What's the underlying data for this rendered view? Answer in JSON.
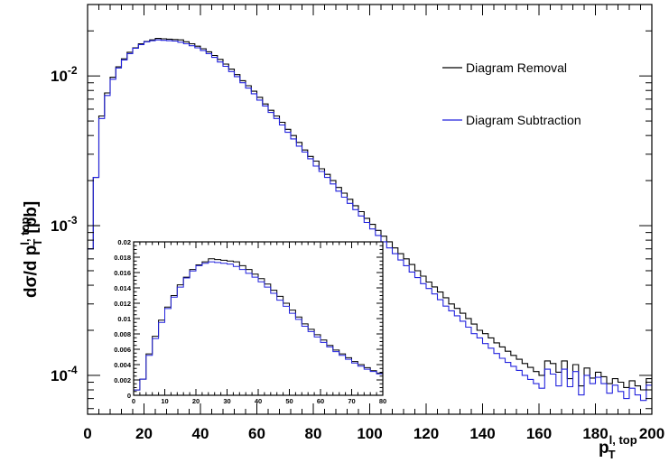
{
  "chart_data": {
    "type": "line",
    "title": "",
    "xlabel": "p_T^{l, top}",
    "ylabel": "dσ/d p_T^{l, top} [pb]",
    "xlim": [
      0,
      200
    ],
    "ylim": [
      5.5e-05,
      0.03
    ],
    "yscale": "log",
    "grid": false,
    "legend_placement": "top-right",
    "x_ticks": [
      "0",
      "20",
      "40",
      "60",
      "80",
      "100",
      "120",
      "140",
      "160",
      "180",
      "200"
    ],
    "y_ticks": [
      "10^-4",
      "10^-3",
      "10^-2"
    ],
    "bin_width": 2,
    "x": [
      0,
      2,
      4,
      6,
      8,
      10,
      12,
      14,
      16,
      18,
      20,
      22,
      24,
      26,
      28,
      30,
      32,
      34,
      36,
      38,
      40,
      42,
      44,
      46,
      48,
      50,
      52,
      54,
      56,
      58,
      60,
      62,
      64,
      66,
      68,
      70,
      72,
      74,
      76,
      78,
      80,
      82,
      84,
      86,
      88,
      90,
      92,
      94,
      96,
      98,
      100,
      102,
      104,
      106,
      108,
      110,
      112,
      114,
      116,
      118,
      120,
      122,
      124,
      126,
      128,
      130,
      132,
      134,
      136,
      138,
      140,
      142,
      144,
      146,
      148,
      150,
      152,
      154,
      156,
      158,
      160,
      162,
      164,
      166,
      168,
      170,
      172,
      174,
      176,
      178,
      180,
      182,
      184,
      186,
      188,
      190,
      192,
      194,
      196,
      198
    ],
    "series": [
      {
        "name": "Diagram Removal",
        "color": "#000000",
        "values": [
          0.0007,
          0.0021,
          0.0052,
          0.0075,
          0.0096,
          0.0114,
          0.0129,
          0.0143,
          0.0154,
          0.0164,
          0.0171,
          0.0173,
          0.0176,
          0.0176,
          0.0175,
          0.0175,
          0.0173,
          0.0169,
          0.0164,
          0.016,
          0.0153,
          0.0145,
          0.0137,
          0.0127,
          0.0118,
          0.0109,
          0.0101,
          0.0093,
          0.0085,
          0.0077,
          0.007,
          0.0064,
          0.0058,
          0.0052,
          0.0047,
          0.0043,
          0.0039,
          0.0035,
          0.0031,
          0.0029,
          0.0026,
          0.00236,
          0.00214,
          0.00194,
          0.00176,
          0.0016,
          0.00145,
          0.00131,
          0.00119,
          0.00108,
          0.00098,
          0.00089,
          0.00081,
          0.00074,
          0.00067,
          0.00061,
          0.00056,
          0.00051,
          0.00047,
          0.00044,
          0.0004,
          0.00037,
          0.00034,
          0.00031,
          0.00029,
          0.00027,
          0.00025,
          0.00023,
          0.00021,
          0.0002,
          0.00018,
          0.00017,
          0.000158,
          0.000148,
          0.000139,
          0.000132,
          0.000122,
          0.000115,
          0.000108,
          0.0001,
          9.6e-05,
          0.0001,
          9.2e-05,
          9.8e-05,
          9.2e-05,
          8.8e-05,
          8.4e-05,
          8.2e-05,
          7.8e-05,
          7.4e-05,
          7.3e-05,
          6.9e-05,
          6.6e-05,
          6.4e-05,
          6.1e-05,
          5.8e-05,
          5.6e-05,
          5.4e-05,
          5.2e-05,
          5e-05
        ],
        "values_actual": [
          0.0007,
          0.0021,
          0.0054,
          0.0077,
          0.0098,
          0.0115,
          0.013,
          0.0144,
          0.0154,
          0.0164,
          0.017,
          0.0174,
          0.0178,
          0.0177,
          0.0176,
          0.0175,
          0.0174,
          0.0169,
          0.0164,
          0.0158,
          0.0152,
          0.0145,
          0.0137,
          0.0129,
          0.012,
          0.0111,
          0.0102,
          0.0093,
          0.0086,
          0.0079,
          0.0072,
          0.0065,
          0.0059,
          0.0054,
          0.0049,
          0.0044,
          0.004,
          0.0036,
          0.0032,
          0.0029,
          0.0027,
          0.0024,
          0.0022,
          0.002,
          0.0018,
          0.00165,
          0.0015,
          0.00136,
          0.00124,
          0.00112,
          0.00102,
          0.00093,
          0.00085,
          0.00078,
          0.00071,
          0.00065,
          0.0006,
          0.00055,
          0.0005,
          0.00046,
          0.00042,
          0.00039,
          0.00036,
          0.00033,
          0.0003,
          0.00028,
          0.00026,
          0.00024,
          0.00022,
          0.0002,
          0.00019,
          0.000178,
          0.000165,
          0.000155,
          0.000145,
          0.000136,
          0.000128,
          0.00012,
          0.000113,
          0.000106,
          0.0001,
          0.000125,
          0.00012,
          0.000105,
          0.000125,
          9.5e-05,
          0.000118,
          8.5e-05,
          0.000112,
          9.6e-05,
          0.000105,
          9.8e-05,
          8.8e-05,
          9.5e-05,
          9e-05,
          8.3e-05,
          9.2e-05,
          8.5e-05,
          8e-05,
          9.5e-05
        ]
      },
      {
        "name": "Diagram Subtraction",
        "color": "#2222dd",
        "values": [
          0.0007,
          0.0021,
          0.0052,
          0.0074,
          0.0095,
          0.0113,
          0.0128,
          0.0141,
          0.0153,
          0.0162,
          0.0169,
          0.0172,
          0.0174,
          0.0173,
          0.0172,
          0.0171,
          0.0168,
          0.0164,
          0.0159,
          0.0154,
          0.0148,
          0.0141,
          0.0133,
          0.0124,
          0.0116,
          0.0107,
          0.0099,
          0.009,
          0.0083,
          0.0076,
          0.0069,
          0.0063,
          0.0057,
          0.0052,
          0.0047,
          0.0042,
          0.0038,
          0.0034,
          0.0031,
          0.0028,
          0.0025,
          0.0023,
          0.0021,
          0.0019,
          0.0017,
          0.00155,
          0.00141,
          0.00128,
          0.00116,
          0.00105,
          0.00095,
          0.00086,
          0.00078,
          0.00071,
          0.00065,
          0.00059,
          0.00054,
          0.00049,
          0.00045,
          0.00041,
          0.00038,
          0.00035,
          0.00032,
          0.00029,
          0.00027,
          0.00025,
          0.00023,
          0.00021,
          0.00019,
          0.000178,
          0.000163,
          0.000152,
          0.00014,
          0.00013,
          0.000122,
          0.000115,
          0.000108,
          0.0001,
          9.4e-05,
          8.8e-05,
          8.2e-05,
          0.00011,
          0.000102,
          8.5e-05,
          0.00011,
          8.4e-05,
          0.000106,
          7.4e-05,
          0.0001,
          8.8e-05,
          9.7e-05,
          8.8e-05,
          7.6e-05,
          8.6e-05,
          7.8e-05,
          7e-05,
          8.2e-05,
          7.4e-05,
          6.8e-05,
          8.6e-05
        ]
      }
    ],
    "inset": {
      "xlim": [
        0,
        80
      ],
      "ylim": [
        0,
        0.02
      ],
      "x_ticks": [
        "0",
        "10",
        "20",
        "30",
        "40",
        "50",
        "60",
        "70",
        "80"
      ],
      "y_ticks": [
        "0",
        "0.002",
        "0.004",
        "0.006",
        "0.008",
        "0.01",
        "0.012",
        "0.014",
        "0.016",
        "0.018",
        "0.02"
      ],
      "grid": false
    }
  }
}
